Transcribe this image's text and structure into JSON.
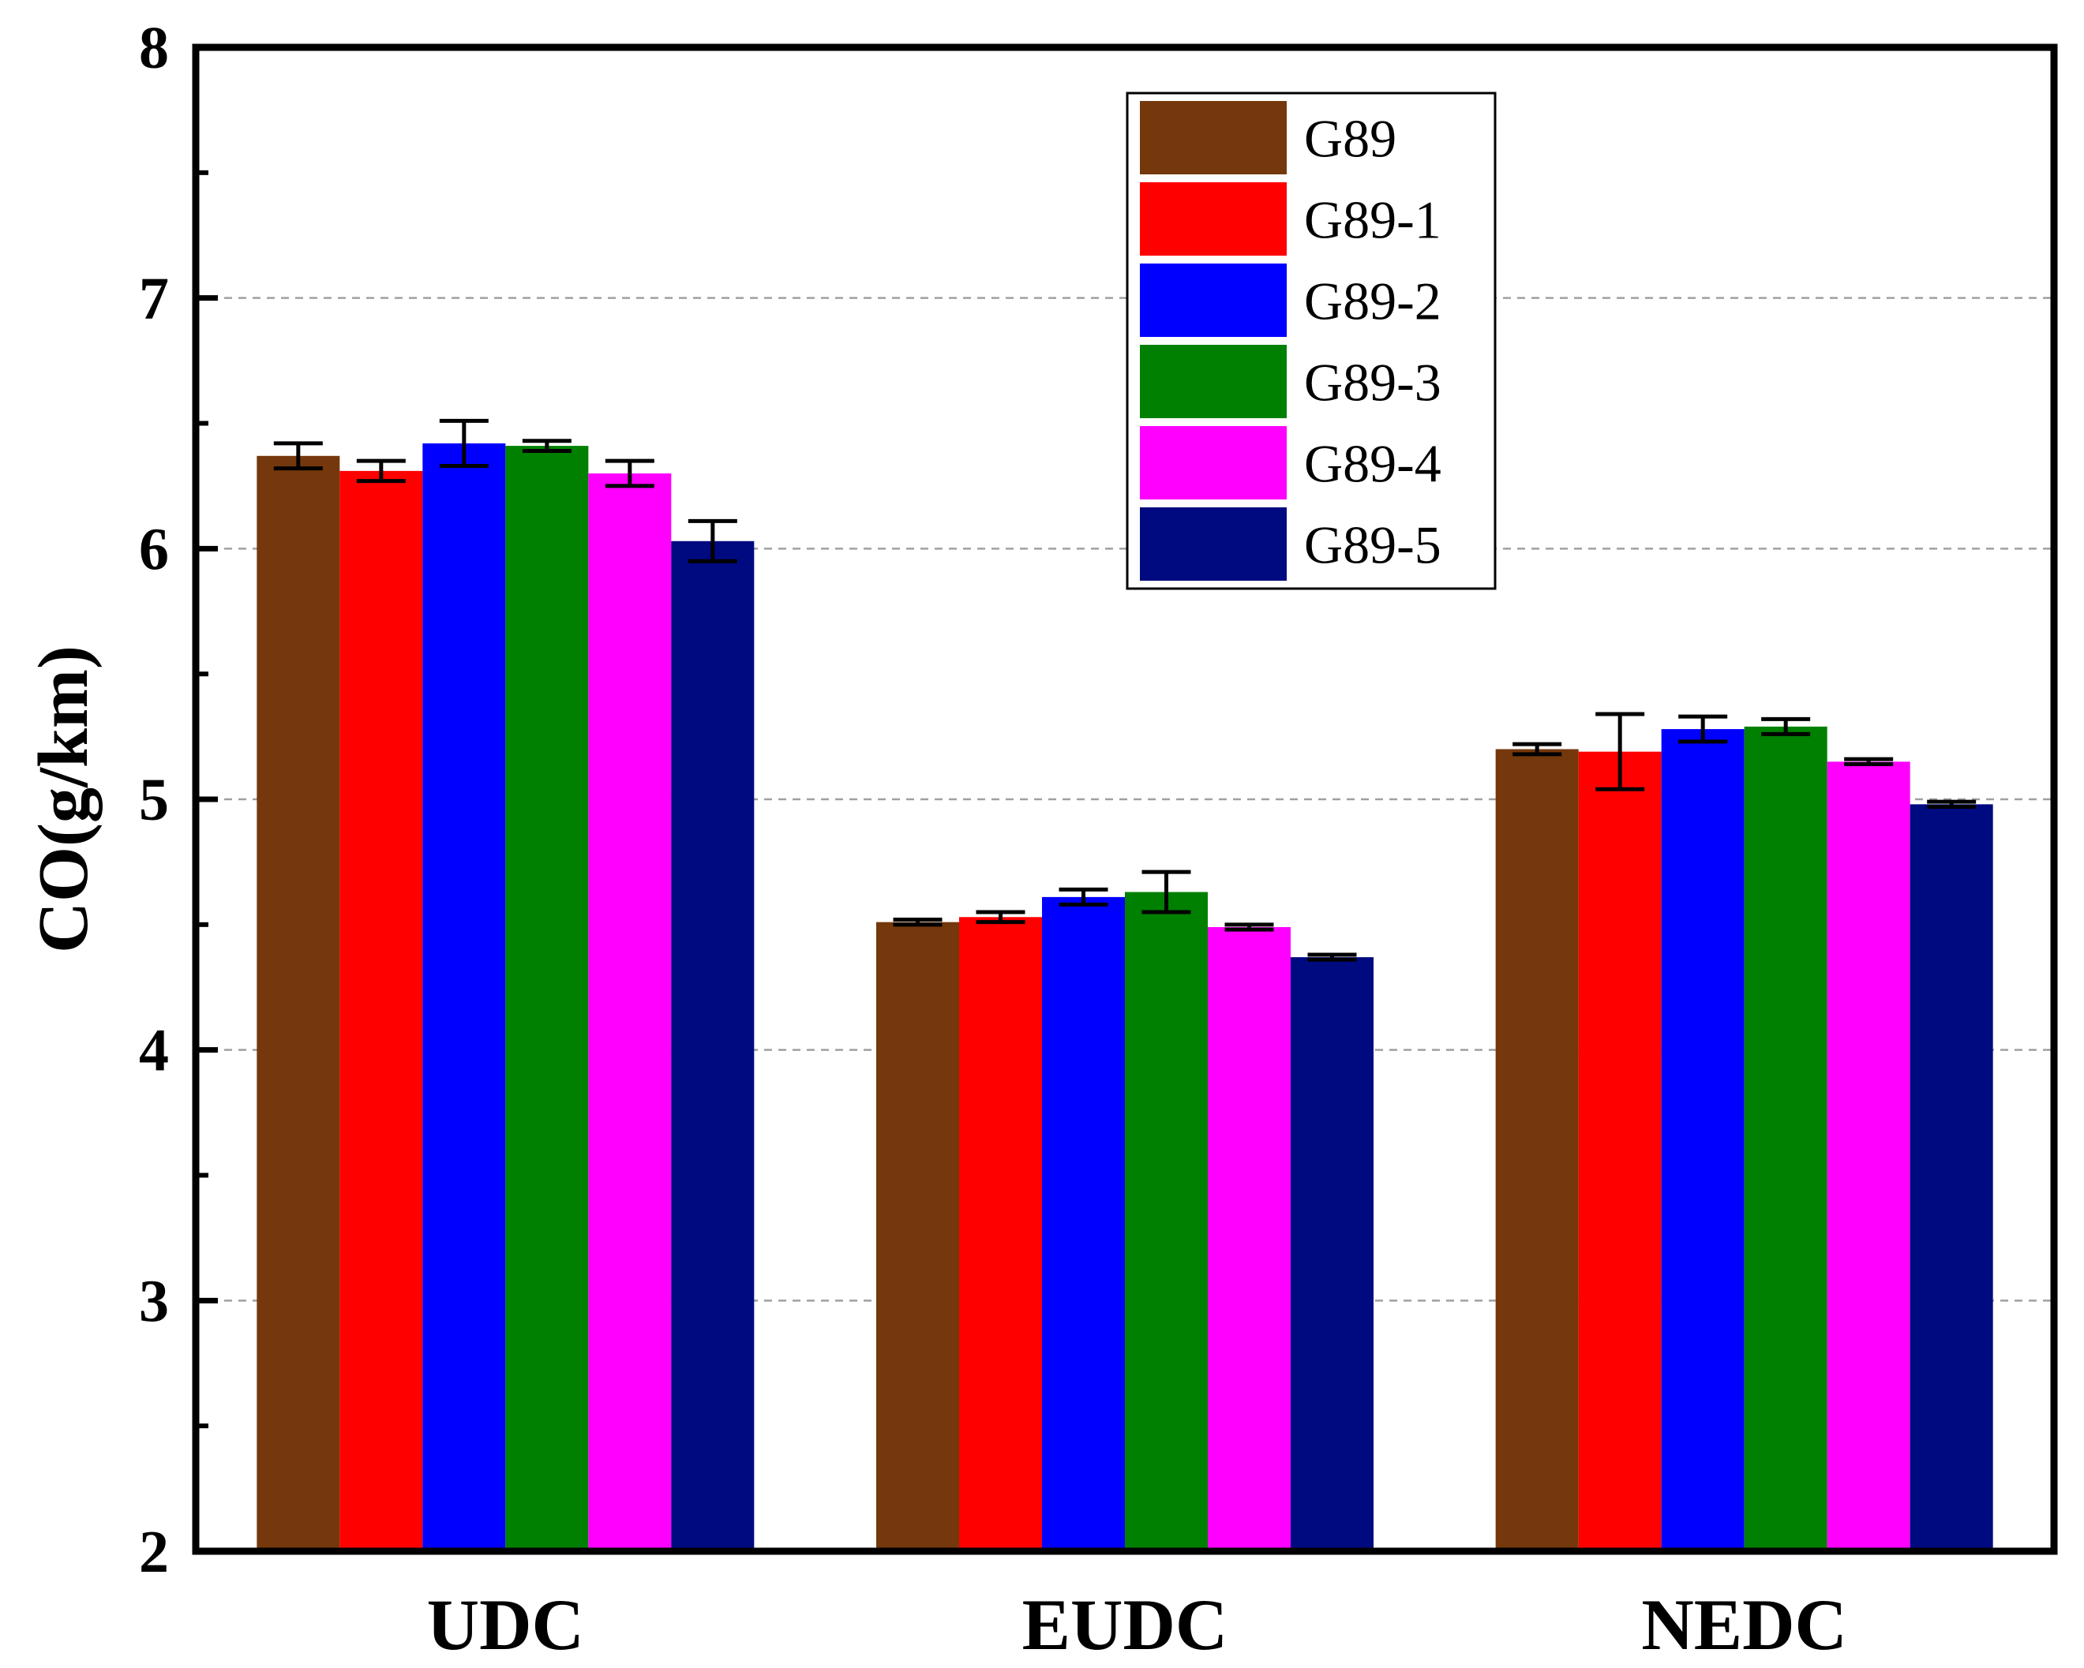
{
  "chart_data": {
    "type": "bar",
    "title": "",
    "xlabel": "",
    "ylabel": "CO(g/km)",
    "ylim": [
      2,
      8
    ],
    "yticks": [
      2,
      3,
      4,
      5,
      6,
      7,
      8
    ],
    "grid": true,
    "legend_position": "top-center",
    "categories": [
      "UDC",
      "EUDC",
      "NEDC"
    ],
    "series": [
      {
        "name": "G89",
        "color": "#74380c",
        "values": [
          6.37,
          4.51,
          5.2
        ],
        "errors": [
          0.05,
          0.01,
          0.02
        ]
      },
      {
        "name": "G89-1",
        "color": "#ff0000",
        "values": [
          6.31,
          4.53,
          5.19
        ],
        "errors": [
          0.04,
          0.02,
          0.15
        ]
      },
      {
        "name": "G89-2",
        "color": "#0000ff",
        "values": [
          6.42,
          4.61,
          5.28
        ],
        "errors": [
          0.09,
          0.03,
          0.05
        ]
      },
      {
        "name": "G89-3",
        "color": "#008000",
        "values": [
          6.41,
          4.63,
          5.29
        ],
        "errors": [
          0.02,
          0.08,
          0.03
        ]
      },
      {
        "name": "G89-4",
        "color": "#ff00ff",
        "values": [
          6.3,
          4.49,
          5.15
        ],
        "errors": [
          0.05,
          0.01,
          0.01
        ]
      },
      {
        "name": "G89-5",
        "color": "#000a80",
        "values": [
          6.03,
          4.37,
          4.98
        ],
        "errors": [
          0.08,
          0.01,
          0.01
        ]
      }
    ]
  }
}
